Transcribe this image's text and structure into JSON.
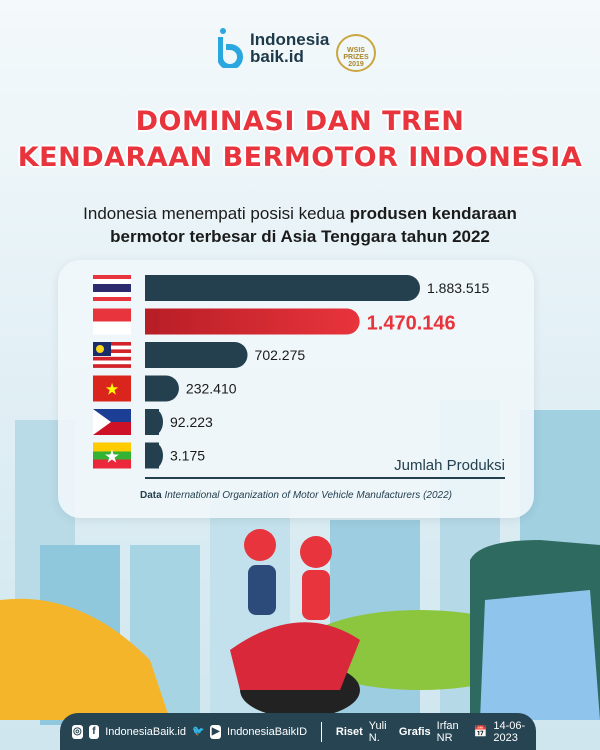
{
  "brand": {
    "name_line1": "Indonesia",
    "name_line2": "baik.id",
    "award": "WSIS PRIZES 2019"
  },
  "title": {
    "line1": "DOMINASI DAN TREN",
    "line2": "KENDARAAN BERMOTOR INDONESIA"
  },
  "subtitle": {
    "part1": "Indonesia menempati posisi kedua ",
    "bold1": "produsen kendaraan",
    "bold2": "bermotor terbesar di Asia Tenggara tahun 2022"
  },
  "chart_data": {
    "type": "bar",
    "orientation": "horizontal",
    "categories": [
      "Thailand",
      "Indonesia",
      "Malaysia",
      "Vietnam",
      "Filipina",
      "Myanmar"
    ],
    "values": [
      1883515,
      1470146,
      702275,
      232410,
      92223,
      3175
    ],
    "labels": [
      "1.883.515",
      "1.470.146",
      "702.275",
      "232.410",
      "92.223",
      "3.175"
    ],
    "highlight": "Indonesia",
    "xlabel": "Jumlah Produksi",
    "colors": {
      "bar": "#24404f",
      "highlight": "#e8343c",
      "highlight_dark": "#b81e26"
    }
  },
  "source": {
    "label": "Data",
    "text": "International Organization of Motor Vehicle Manufacturers (2022)"
  },
  "footer": {
    "handle1": "IndonesiaBaik.id",
    "handle2": "IndonesiaBaikID",
    "riset_label": "Riset",
    "riset": "Yuli N.",
    "grafis_label": "Grafis",
    "grafis": "Irfan NR",
    "date": "14-06-2023"
  }
}
